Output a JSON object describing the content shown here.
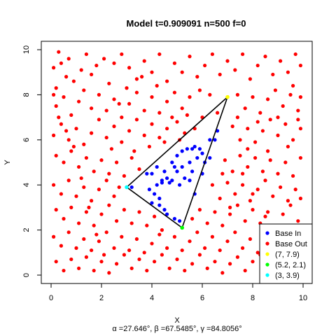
{
  "chart_data": {
    "type": "scatter",
    "title": "Model t=0.909091 n=500 f=0",
    "xlabel": "X",
    "ylabel": "Y",
    "subtitle": "α =27.646°,  β =67.5485°,  γ =84.8056°",
    "xlim": [
      0,
      10
    ],
    "ylim": [
      0,
      10
    ],
    "xticks": [
      0,
      2,
      4,
      6,
      8,
      10
    ],
    "yticks": [
      0,
      2,
      4,
      6,
      8,
      10
    ],
    "colors": {
      "in": "#0000ff",
      "out": "#ff0000",
      "v1": "#ffff00",
      "v2": "#00ff00",
      "v3": "#00ffff",
      "edge": "#000000"
    },
    "triangle": [
      [
        7,
        7.9
      ],
      [
        5.2,
        2.1
      ],
      [
        3,
        3.9
      ]
    ],
    "series": [
      {
        "name": "Base In",
        "color": "#0000ff",
        "points": [
          [
            3.2,
            3.9
          ],
          [
            3.8,
            4.5
          ],
          [
            3.9,
            3.8
          ],
          [
            4.0,
            4.5
          ],
          [
            4.0,
            3.2
          ],
          [
            4.1,
            3.6
          ],
          [
            4.2,
            4.0
          ],
          [
            4.2,
            4.8
          ],
          [
            4.3,
            3.4
          ],
          [
            4.3,
            3.1
          ],
          [
            4.4,
            4.2
          ],
          [
            4.5,
            2.9
          ],
          [
            4.5,
            4.6
          ],
          [
            4.6,
            4.3
          ],
          [
            4.6,
            2.7
          ],
          [
            4.7,
            4.1
          ],
          [
            4.8,
            5.0
          ],
          [
            4.8,
            4.2
          ],
          [
            4.9,
            2.5
          ],
          [
            4.9,
            4.8
          ],
          [
            5.0,
            5.3
          ],
          [
            5.0,
            4.6
          ],
          [
            5.1,
            2.4
          ],
          [
            5.1,
            4.0
          ],
          [
            5.2,
            5.5
          ],
          [
            5.2,
            4.8
          ],
          [
            5.3,
            4.3
          ],
          [
            5.4,
            5.6
          ],
          [
            5.5,
            5.0
          ],
          [
            5.5,
            4.2
          ],
          [
            5.6,
            5.6
          ],
          [
            5.7,
            5.7
          ],
          [
            5.8,
            5.2
          ],
          [
            5.9,
            5.6
          ],
          [
            6.0,
            5.4
          ],
          [
            6.1,
            5.0
          ],
          [
            6.3,
            6.0
          ],
          [
            6.5,
            6.0
          ],
          [
            6.6,
            6.4
          ],
          [
            6.3,
            5.2
          ],
          [
            4.4,
            4.1
          ],
          [
            5.7,
            3.6
          ],
          [
            5.6,
            4.6
          ],
          [
            6.0,
            4.5
          ]
        ]
      },
      {
        "name": "Base Out",
        "color": "#ff0000",
        "points": [
          [
            0.1,
            9.2
          ],
          [
            0.2,
            8.3
          ],
          [
            0.3,
            9.9
          ],
          [
            0.4,
            9.4
          ],
          [
            0.6,
            8.8
          ],
          [
            0.7,
            9.6
          ],
          [
            0.9,
            8.6
          ],
          [
            1.2,
            9.1
          ],
          [
            1.4,
            9.8
          ],
          [
            1.6,
            8.9
          ],
          [
            1.8,
            9.3
          ],
          [
            2.1,
            9.6
          ],
          [
            2.3,
            8.5
          ],
          [
            2.5,
            9.4
          ],
          [
            2.8,
            9.8
          ],
          [
            3.1,
            9.2
          ],
          [
            3.4,
            8.7
          ],
          [
            3.7,
            9.5
          ],
          [
            4.0,
            9.0
          ],
          [
            4.3,
            9.8
          ],
          [
            4.6,
            8.6
          ],
          [
            4.9,
            9.4
          ],
          [
            5.2,
            9.0
          ],
          [
            5.5,
            9.7
          ],
          [
            5.8,
            8.8
          ],
          [
            6.1,
            9.3
          ],
          [
            6.4,
            9.8
          ],
          [
            6.7,
            8.9
          ],
          [
            7.0,
            9.5
          ],
          [
            7.3,
            9.1
          ],
          [
            7.6,
            9.8
          ],
          [
            7.9,
            8.7
          ],
          [
            8.2,
            9.3
          ],
          [
            8.5,
            9.7
          ],
          [
            8.8,
            8.9
          ],
          [
            9.1,
            9.5
          ],
          [
            9.4,
            9.0
          ],
          [
            9.7,
            9.8
          ],
          [
            9.9,
            9.3
          ],
          [
            9.6,
            8.4
          ],
          [
            0.2,
            7.5
          ],
          [
            0.5,
            7.9
          ],
          [
            0.8,
            7.1
          ],
          [
            1.1,
            7.7
          ],
          [
            1.3,
            8.2
          ],
          [
            1.6,
            7.4
          ],
          [
            1.9,
            8.0
          ],
          [
            2.2,
            7.3
          ],
          [
            2.5,
            7.8
          ],
          [
            2.8,
            7.0
          ],
          [
            3.1,
            7.6
          ],
          [
            3.4,
            8.1
          ],
          [
            3.7,
            7.3
          ],
          [
            4.0,
            7.9
          ],
          [
            4.3,
            7.2
          ],
          [
            4.6,
            7.7
          ],
          [
            4.9,
            8.1
          ],
          [
            5.2,
            7.4
          ],
          [
            5.5,
            7.9
          ],
          [
            5.9,
            8.2
          ],
          [
            7.4,
            8.0
          ],
          [
            7.7,
            7.4
          ],
          [
            8.0,
            7.9
          ],
          [
            8.3,
            7.2
          ],
          [
            8.6,
            7.8
          ],
          [
            8.9,
            8.2
          ],
          [
            9.2,
            7.5
          ],
          [
            9.5,
            8.0
          ],
          [
            9.8,
            7.3
          ],
          [
            9.9,
            7.9
          ],
          [
            0.1,
            6.2
          ],
          [
            0.4,
            6.7
          ],
          [
            0.7,
            6.0
          ],
          [
            1.0,
            6.5
          ],
          [
            1.3,
            5.8
          ],
          [
            1.6,
            6.3
          ],
          [
            1.9,
            6.9
          ],
          [
            2.2,
            6.1
          ],
          [
            2.5,
            6.6
          ],
          [
            2.8,
            5.9
          ],
          [
            3.1,
            6.4
          ],
          [
            3.4,
            6.9
          ],
          [
            3.7,
            6.2
          ],
          [
            4.0,
            6.7
          ],
          [
            4.3,
            6.1
          ],
          [
            4.6,
            6.5
          ],
          [
            5.0,
            6.8
          ],
          [
            5.3,
            6.3
          ],
          [
            7.2,
            6.6
          ],
          [
            7.5,
            6.0
          ],
          [
            7.8,
            6.5
          ],
          [
            8.1,
            5.9
          ],
          [
            8.4,
            6.4
          ],
          [
            8.7,
            6.9
          ],
          [
            9.0,
            6.2
          ],
          [
            9.3,
            6.7
          ],
          [
            9.6,
            6.0
          ],
          [
            9.9,
            6.5
          ],
          [
            0.2,
            5.3
          ],
          [
            0.5,
            5.0
          ],
          [
            0.8,
            5.5
          ],
          [
            1.1,
            4.8
          ],
          [
            1.4,
            5.2
          ],
          [
            1.7,
            4.6
          ],
          [
            2.0,
            5.1
          ],
          [
            2.3,
            4.5
          ],
          [
            2.6,
            5.0
          ],
          [
            2.9,
            4.4
          ],
          [
            3.2,
            5.2
          ],
          [
            3.5,
            4.7
          ],
          [
            6.9,
            5.1
          ],
          [
            7.2,
            4.6
          ],
          [
            7.5,
            5.3
          ],
          [
            7.8,
            4.8
          ],
          [
            8.1,
            5.2
          ],
          [
            8.4,
            4.6
          ],
          [
            8.7,
            5.1
          ],
          [
            9.0,
            4.5
          ],
          [
            9.3,
            5.0
          ],
          [
            9.6,
            4.4
          ],
          [
            9.9,
            5.2
          ],
          [
            0.1,
            4.0
          ],
          [
            0.4,
            3.6
          ],
          [
            0.7,
            4.2
          ],
          [
            1.0,
            3.5
          ],
          [
            1.3,
            3.9
          ],
          [
            1.6,
            3.3
          ],
          [
            1.9,
            3.8
          ],
          [
            2.2,
            4.2
          ],
          [
            2.5,
            3.5
          ],
          [
            2.7,
            3.9
          ],
          [
            6.4,
            4.0
          ],
          [
            6.7,
            3.4
          ],
          [
            7.0,
            4.1
          ],
          [
            7.3,
            3.6
          ],
          [
            7.6,
            4.0
          ],
          [
            7.9,
            3.3
          ],
          [
            8.2,
            3.8
          ],
          [
            8.5,
            4.2
          ],
          [
            8.8,
            3.5
          ],
          [
            9.1,
            3.9
          ],
          [
            9.4,
            3.3
          ],
          [
            9.7,
            3.8
          ],
          [
            9.9,
            3.4
          ],
          [
            0.2,
            2.9
          ],
          [
            0.5,
            2.5
          ],
          [
            0.8,
            3.0
          ],
          [
            1.1,
            2.3
          ],
          [
            1.4,
            2.8
          ],
          [
            1.7,
            2.2
          ],
          [
            2.0,
            2.7
          ],
          [
            2.3,
            3.1
          ],
          [
            2.6,
            2.4
          ],
          [
            2.9,
            2.9
          ],
          [
            3.2,
            2.3
          ],
          [
            3.5,
            2.8
          ],
          [
            3.8,
            2.2
          ],
          [
            4.1,
            2.6
          ],
          [
            4.4,
            2.0
          ],
          [
            5.6,
            2.5
          ],
          [
            5.9,
            2.9
          ],
          [
            6.2,
            2.3
          ],
          [
            6.5,
            2.8
          ],
          [
            6.8,
            2.2
          ],
          [
            7.1,
            2.7
          ],
          [
            7.4,
            3.1
          ],
          [
            7.7,
            2.4
          ],
          [
            8.0,
            2.9
          ],
          [
            8.3,
            2.3
          ],
          [
            8.6,
            2.8
          ],
          [
            8.9,
            2.2
          ],
          [
            9.2,
            2.7
          ],
          [
            9.5,
            3.1
          ],
          [
            9.8,
            2.4
          ],
          [
            0.1,
            1.7
          ],
          [
            0.4,
            1.3
          ],
          [
            0.7,
            1.9
          ],
          [
            1.0,
            1.2
          ],
          [
            1.3,
            1.6
          ],
          [
            1.6,
            1.1
          ],
          [
            1.9,
            1.5
          ],
          [
            2.2,
            1.9
          ],
          [
            2.5,
            1.2
          ],
          [
            2.8,
            1.7
          ],
          [
            3.1,
            1.1
          ],
          [
            3.4,
            1.6
          ],
          [
            3.7,
            1.0
          ],
          [
            4.0,
            1.4
          ],
          [
            4.3,
            1.8
          ],
          [
            4.6,
            1.2
          ],
          [
            4.9,
            1.7
          ],
          [
            5.2,
            1.1
          ],
          [
            5.5,
            1.5
          ],
          [
            5.8,
            1.9
          ],
          [
            6.1,
            1.2
          ],
          [
            6.4,
            1.7
          ],
          [
            6.7,
            1.1
          ],
          [
            7.0,
            1.5
          ],
          [
            7.3,
            1.9
          ],
          [
            7.6,
            1.2
          ],
          [
            7.9,
            1.6
          ],
          [
            8.2,
            1.0
          ],
          [
            0.2,
            0.6
          ],
          [
            0.5,
            0.2
          ],
          [
            0.8,
            0.7
          ],
          [
            1.1,
            0.3
          ],
          [
            1.4,
            0.8
          ],
          [
            1.7,
            0.2
          ],
          [
            2.0,
            0.6
          ],
          [
            2.3,
            0.1
          ],
          [
            2.6,
            0.5
          ],
          [
            2.9,
            0.9
          ],
          [
            3.2,
            0.3
          ],
          [
            3.5,
            0.7
          ],
          [
            3.8,
            0.2
          ],
          [
            4.1,
            0.6
          ],
          [
            4.4,
            0.9
          ],
          [
            4.7,
            0.3
          ],
          [
            5.0,
            0.7
          ],
          [
            5.3,
            0.2
          ],
          [
            5.6,
            0.5
          ],
          [
            5.9,
            0.9
          ],
          [
            6.2,
            0.3
          ],
          [
            6.5,
            0.6
          ],
          [
            6.8,
            0.1
          ],
          [
            7.1,
            0.5
          ],
          [
            7.4,
            0.8
          ],
          [
            7.7,
            0.2
          ],
          [
            8.0,
            0.6
          ],
          [
            8.3,
            0.9
          ],
          [
            0.1,
            8.0
          ],
          [
            0.3,
            7.0
          ],
          [
            0.6,
            6.4
          ],
          [
            0.9,
            5.7
          ],
          [
            1.2,
            4.3
          ],
          [
            1.5,
            3.0
          ],
          [
            1.8,
            1.8
          ],
          [
            2.1,
            0.9
          ],
          [
            2.4,
            5.6
          ],
          [
            2.7,
            7.6
          ],
          [
            3.0,
            8.3
          ],
          [
            3.3,
            5.5
          ],
          [
            3.6,
            8.8
          ],
          [
            3.9,
            5.7
          ],
          [
            4.2,
            8.4
          ],
          [
            4.5,
            5.9
          ],
          [
            4.8,
            7.0
          ],
          [
            5.1,
            6.0
          ],
          [
            5.4,
            7.1
          ],
          [
            5.7,
            6.5
          ],
          [
            6.0,
            7.0
          ],
          [
            6.3,
            8.0
          ],
          [
            6.6,
            7.2
          ],
          [
            7.4,
            7.0
          ],
          [
            7.8,
            5.6
          ],
          [
            8.2,
            6.8
          ],
          [
            8.6,
            5.5
          ],
          [
            9.0,
            7.0
          ],
          [
            9.4,
            5.7
          ],
          [
            9.8,
            6.9
          ],
          [
            6.8,
            4.5
          ],
          [
            7.1,
            3.0
          ],
          [
            7.6,
            4.5
          ],
          [
            8.0,
            3.6
          ],
          [
            8.5,
            2.6
          ],
          [
            9.0,
            1.5
          ],
          [
            9.5,
            2.0
          ],
          [
            9.8,
            1.0
          ],
          [
            9.2,
            0.6
          ],
          [
            8.6,
            1.4
          ]
        ]
      }
    ],
    "legend": {
      "position": "bottom-right",
      "entries": [
        {
          "label": "Base In",
          "color": "#0000ff"
        },
        {
          "label": "Base Out",
          "color": "#ff0000"
        },
        {
          "label": "(7, 7.9)",
          "color": "#ffff00"
        },
        {
          "label": "(5.2, 2.1)",
          "color": "#00ff00"
        },
        {
          "label": "(3, 3.9)",
          "color": "#00ffff"
        }
      ]
    }
  }
}
